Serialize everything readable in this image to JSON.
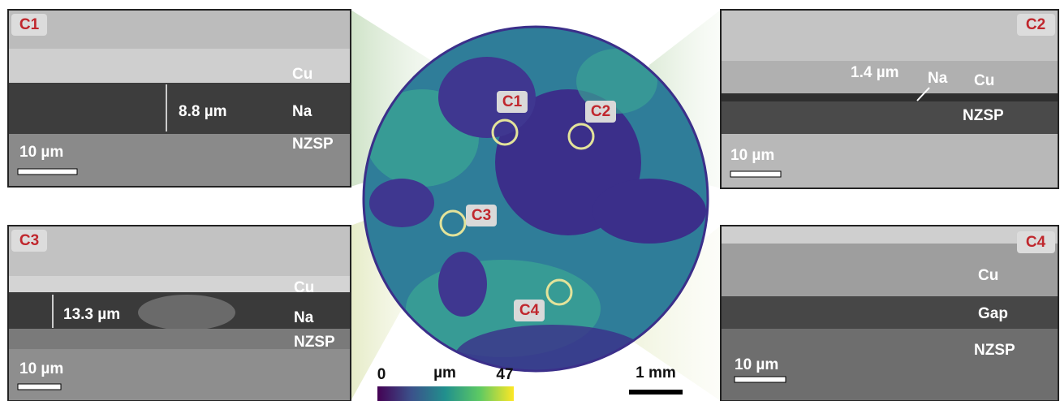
{
  "panels": [
    {
      "label": "C1",
      "layers": [
        "Cu",
        "Na",
        "NZSP"
      ],
      "measurement": "8.8 µm",
      "scale_bar": "10 µm"
    },
    {
      "label": "C2",
      "layers": [
        "Cu",
        "NZSP"
      ],
      "annotation": "Na",
      "measurement": "1.4 µm",
      "scale_bar": "10 µm"
    },
    {
      "label": "C3",
      "layers": [
        "Cu",
        "Na",
        "NZSP"
      ],
      "measurement": "13.3 µm",
      "scale_bar": "10 µm"
    },
    {
      "label": "C4",
      "layers": [
        "Cu",
        "Gap",
        "NZSP"
      ],
      "scale_bar": "10 µm"
    }
  ],
  "map": {
    "markers": [
      "C1",
      "C2",
      "C3",
      "C4"
    ],
    "colorbar": {
      "min": 0,
      "unit": "µm",
      "max": 47
    },
    "scale_bar": "1 mm"
  }
}
